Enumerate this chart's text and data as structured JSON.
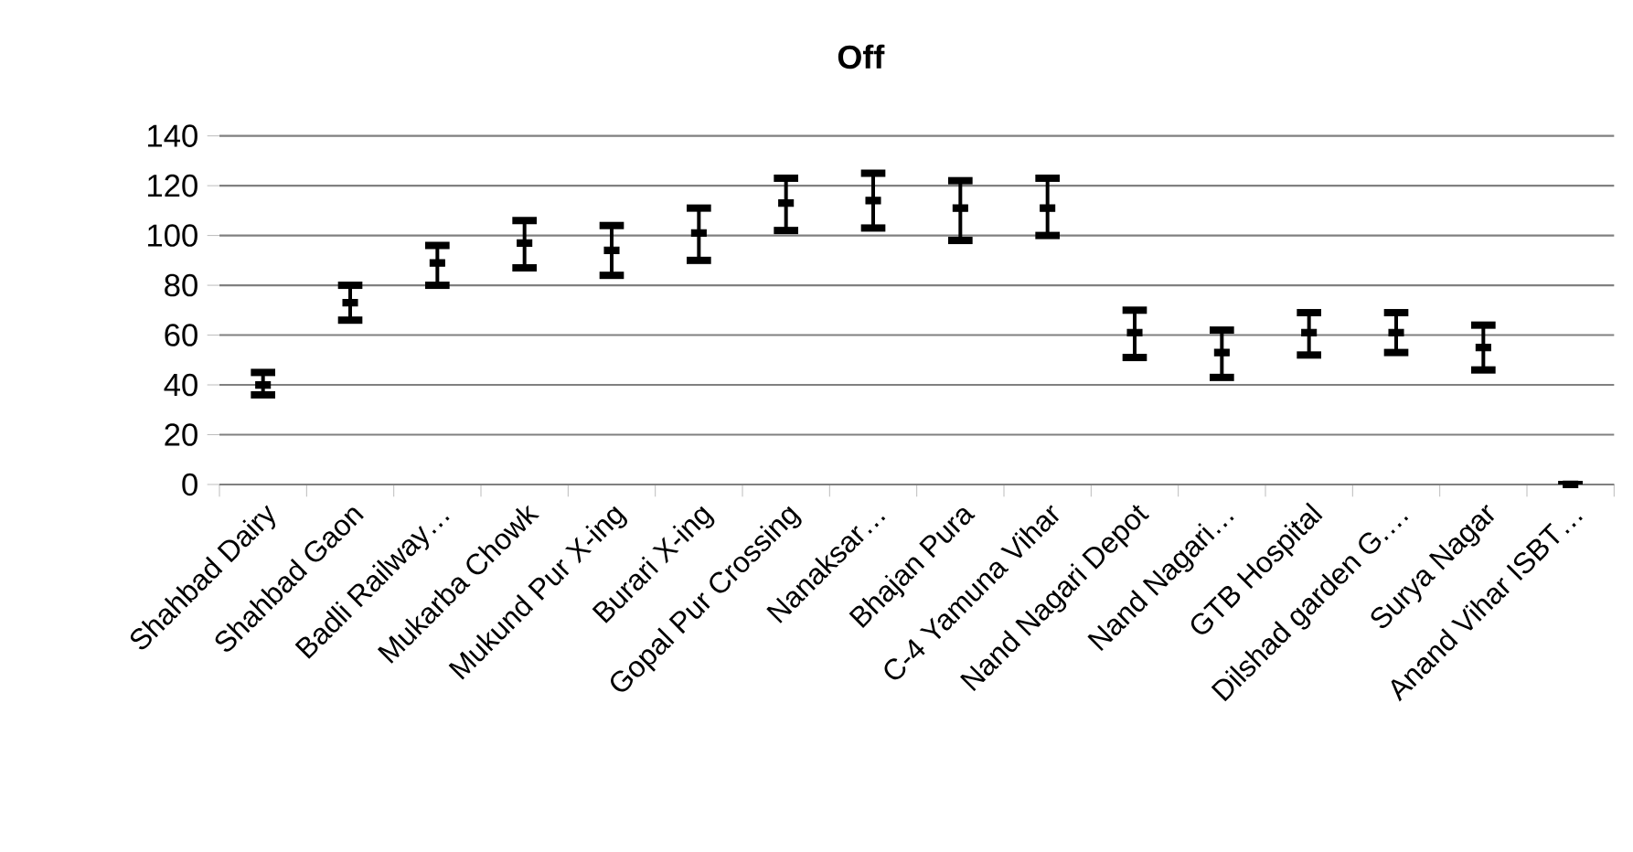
{
  "chart_data": {
    "type": "scatter",
    "title": "Off",
    "categories": [
      "Shahbad Dairy",
      "Shahbad Gaon",
      "Badli Railway…",
      "Mukarba Chowk",
      "Mukund Pur X-ing",
      "Burari X-ing",
      "Gopal Pur Crossing",
      "Nanaksar…",
      "Bhajan Pura",
      "C-4 Yamuna Vihar",
      "Nand Nagari Depot",
      "Nand Nagari…",
      "GTB Hospital",
      "Dilshad garden G.…",
      "Surya Nagar",
      "Anand Vihar ISBT…"
    ],
    "values": [
      40,
      73,
      89,
      97,
      94,
      101,
      113,
      114,
      111,
      111,
      61,
      53,
      61,
      61,
      55,
      0
    ],
    "errors": [
      [
        36,
        45
      ],
      [
        66,
        80
      ],
      [
        80,
        96
      ],
      [
        87,
        106
      ],
      [
        84,
        104
      ],
      [
        90,
        111
      ],
      [
        102,
        123
      ],
      [
        103,
        125
      ],
      [
        98,
        122
      ],
      [
        100,
        123
      ],
      [
        51,
        70
      ],
      [
        43,
        62
      ],
      [
        52,
        69
      ],
      [
        53,
        69
      ],
      [
        46,
        64
      ],
      [
        0,
        0
      ]
    ],
    "color": "#000000",
    "ylim": [
      0,
      140
    ],
    "yticks": [
      0,
      20,
      40,
      60,
      80,
      100,
      120,
      140
    ],
    "grid": "y"
  }
}
